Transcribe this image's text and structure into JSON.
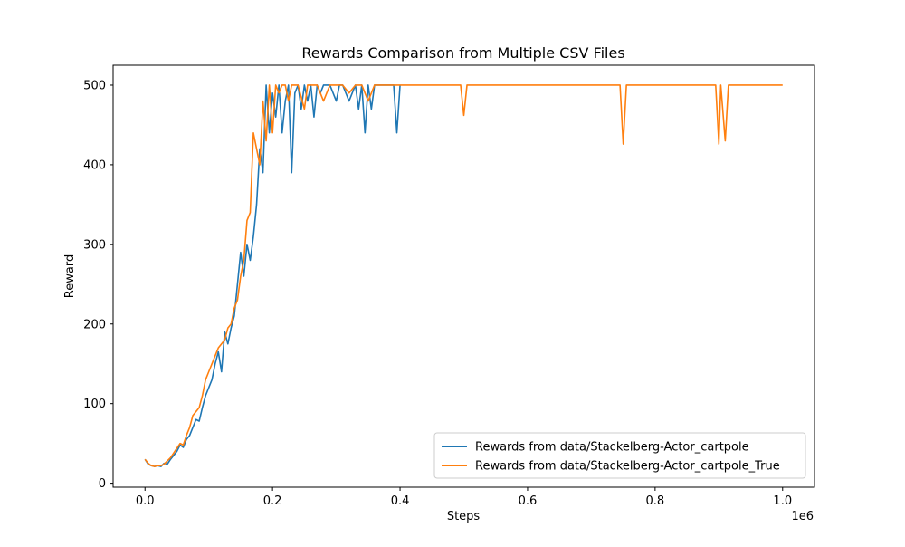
{
  "chart_data": {
    "type": "line",
    "title": "Rewards Comparison from Multiple CSV Files",
    "xlabel": "Steps",
    "ylabel": "Reward",
    "x_offset_label": "1e6",
    "xlim": [
      -50000,
      1050000
    ],
    "ylim": [
      -5,
      525
    ],
    "xticks": [
      0,
      200000,
      400000,
      600000,
      800000,
      1000000
    ],
    "xtick_labels": [
      "0.0",
      "0.2",
      "0.4",
      "0.6",
      "0.8",
      "1.0"
    ],
    "yticks": [
      0,
      100,
      200,
      300,
      400,
      500
    ],
    "ytick_labels": [
      "0",
      "100",
      "200",
      "300",
      "400",
      "500"
    ],
    "grid": false,
    "legend_position": "lower-right",
    "series": [
      {
        "name": "Rewards from data/Stackelberg-Actor_cartpole",
        "color": "#1f77b4",
        "x": [
          0,
          5000,
          10000,
          15000,
          20000,
          25000,
          30000,
          35000,
          40000,
          45000,
          50000,
          55000,
          60000,
          65000,
          70000,
          75000,
          80000,
          85000,
          90000,
          95000,
          100000,
          105000,
          110000,
          115000,
          120000,
          125000,
          130000,
          135000,
          140000,
          145000,
          150000,
          155000,
          160000,
          165000,
          170000,
          175000,
          180000,
          185000,
          190000,
          195000,
          200000,
          205000,
          210000,
          215000,
          220000,
          225000,
          230000,
          235000,
          240000,
          245000,
          250000,
          255000,
          260000,
          265000,
          270000,
          275000,
          280000,
          290000,
          300000,
          305000,
          310000,
          320000,
          330000,
          335000,
          340000,
          345000,
          350000,
          355000,
          360000,
          365000,
          370000,
          380000,
          390000,
          395000,
          400000
        ],
        "y": [
          30,
          24,
          22,
          21,
          22,
          21,
          25,
          24,
          30,
          35,
          40,
          48,
          45,
          55,
          60,
          70,
          80,
          78,
          95,
          110,
          120,
          130,
          150,
          165,
          140,
          190,
          175,
          195,
          210,
          250,
          290,
          260,
          300,
          280,
          310,
          350,
          420,
          390,
          500,
          440,
          490,
          460,
          500,
          440,
          480,
          500,
          390,
          490,
          500,
          470,
          500,
          480,
          500,
          460,
          500,
          490,
          500,
          500,
          480,
          500,
          500,
          480,
          500,
          470,
          500,
          440,
          500,
          470,
          500,
          500,
          500,
          500,
          500,
          440,
          500
        ]
      },
      {
        "name": "Rewards from data/Stackelberg-Actor_cartpole_True",
        "color": "#ff7f0e",
        "x": [
          0,
          5000,
          10000,
          15000,
          20000,
          25000,
          30000,
          35000,
          40000,
          45000,
          50000,
          55000,
          60000,
          65000,
          70000,
          75000,
          80000,
          85000,
          90000,
          95000,
          100000,
          105000,
          110000,
          115000,
          120000,
          125000,
          130000,
          135000,
          140000,
          145000,
          150000,
          155000,
          160000,
          165000,
          170000,
          175000,
          180000,
          185000,
          190000,
          195000,
          200000,
          205000,
          210000,
          215000,
          220000,
          225000,
          230000,
          240000,
          250000,
          255000,
          260000,
          270000,
          280000,
          290000,
          300000,
          310000,
          320000,
          330000,
          340000,
          350000,
          360000,
          380000,
          400000,
          420000,
          440000,
          460000,
          480000,
          495000,
          500000,
          505000,
          520000,
          600000,
          700000,
          745000,
          750000,
          755000,
          800000,
          895000,
          900000,
          903000,
          906000,
          910000,
          915000,
          950000,
          1000000
        ],
        "y": [
          30,
          25,
          22,
          21,
          22,
          22,
          24,
          28,
          32,
          38,
          44,
          50,
          48,
          60,
          70,
          85,
          90,
          95,
          110,
          130,
          140,
          150,
          160,
          170,
          175,
          180,
          195,
          200,
          220,
          230,
          260,
          280,
          330,
          340,
          440,
          420,
          400,
          480,
          430,
          500,
          440,
          500,
          490,
          500,
          500,
          480,
          500,
          500,
          470,
          500,
          500,
          500,
          480,
          500,
          500,
          500,
          490,
          500,
          500,
          480,
          500,
          500,
          500,
          500,
          500,
          500,
          500,
          500,
          462,
          500,
          500,
          500,
          500,
          500,
          426,
          500,
          500,
          500,
          426,
          500,
          470,
          430,
          500,
          500,
          500
        ]
      }
    ]
  }
}
